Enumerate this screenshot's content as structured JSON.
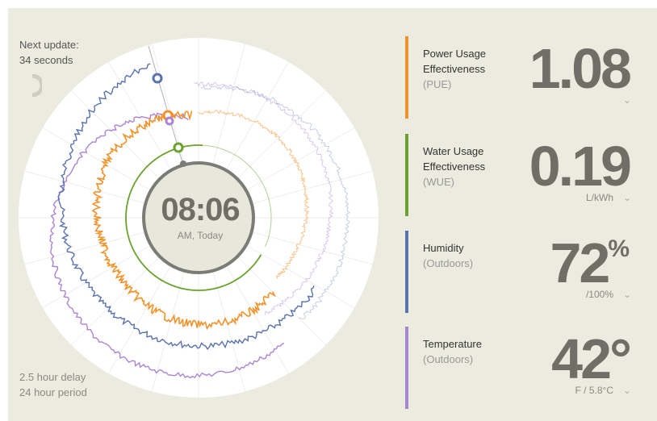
{
  "status": {
    "next_update_label": "Next update:",
    "next_update_value": "34 seconds",
    "delay": "2.5 hour delay",
    "period": "24 hour period"
  },
  "clock": {
    "time": "08:06",
    "subtitle": "AM, Today"
  },
  "colors": {
    "pue": "#f2922b",
    "wue": "#6aa22d",
    "humidity": "#5a72ad",
    "temperature": "#ab85d2",
    "background": "#ecebdf",
    "value_text": "#6f6f68"
  },
  "metrics": {
    "pue": {
      "label_line1": "Power Usage",
      "label_line2": "Effectiveness",
      "sub": "(PUE)",
      "value": "1.08",
      "unit": "",
      "chevron": "⌄"
    },
    "wue": {
      "label_line1": "Water Usage",
      "label_line2": "Effectiveness",
      "sub": "(WUE)",
      "value": "0.19",
      "unit": "L/kWh",
      "chevron": "⌄"
    },
    "humidity": {
      "label_line1": "Humidity",
      "sub": "(Outdoors)",
      "value": "72",
      "value_sup": "%",
      "unit": "/100%",
      "chevron": "⌄"
    },
    "temperature": {
      "label_line1": "Temperature",
      "sub": "(Outdoors)",
      "value": "42°",
      "unit": "F / 5.8°C",
      "chevron": "⌄"
    }
  }
}
